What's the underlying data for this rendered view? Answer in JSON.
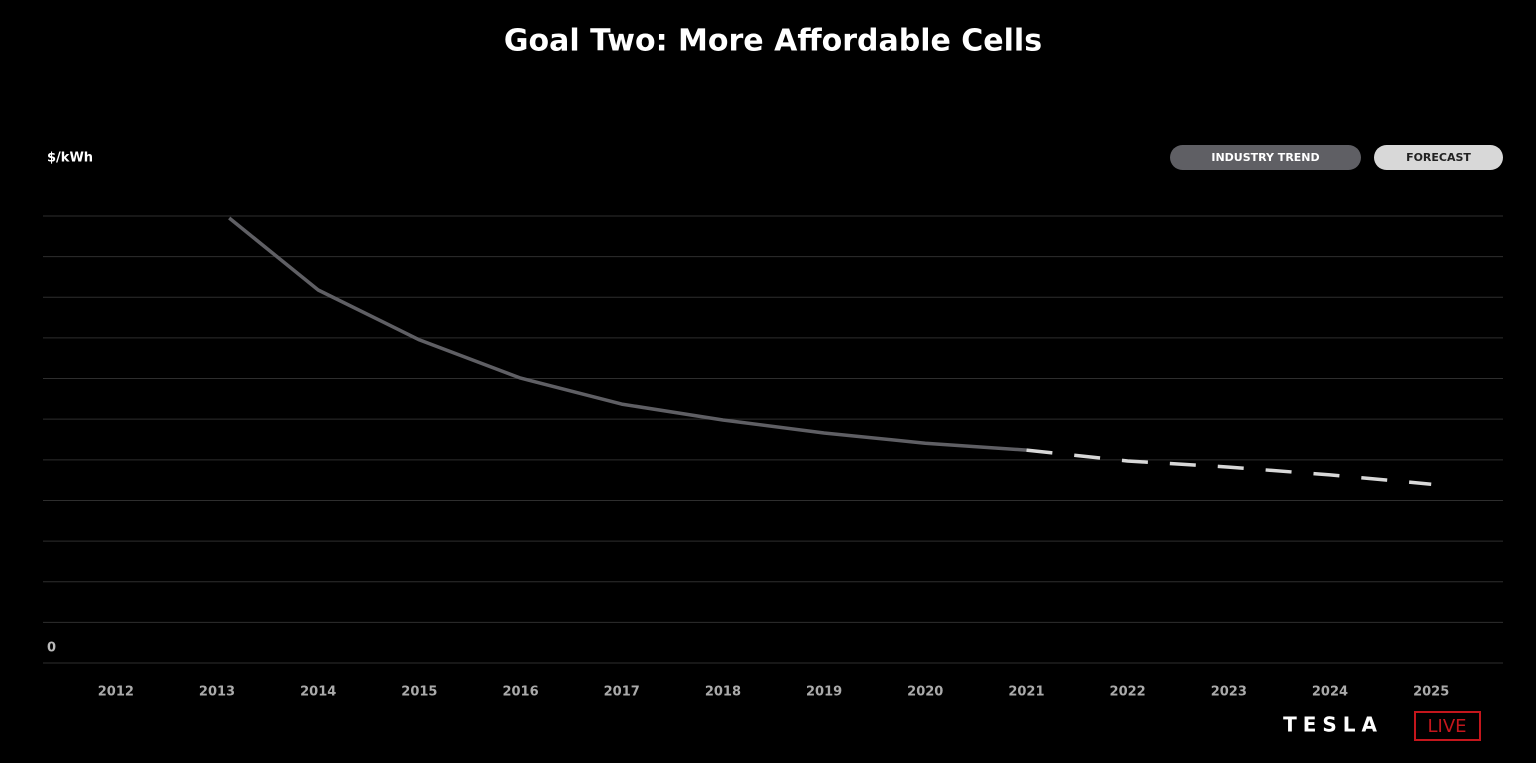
{
  "chart_data": {
    "type": "line",
    "title": "Goal Two: More Affordable Cells",
    "y_label": "$/kWh",
    "xlim": [
      2011.28,
      2025.71
    ],
    "xticks": [
      2012,
      2013,
      2014,
      2015,
      2016,
      2017,
      2018,
      2019,
      2020,
      2021,
      2022,
      2023,
      2024,
      2025
    ],
    "ylim": [
      0,
      11
    ],
    "yticks": [
      0,
      {
        "value": 1,
        "label": null
      },
      {
        "value": 2,
        "label": null
      },
      {
        "value": 3,
        "label": null
      },
      {
        "value": 4,
        "label": null
      },
      {
        "value": 5,
        "label": null
      },
      {
        "value": 6,
        "label": null
      },
      {
        "value": 7,
        "label": null
      },
      {
        "value": 8,
        "label": null
      },
      {
        "value": 9,
        "label": null
      },
      {
        "value": 10,
        "label": null
      },
      {
        "value": 11,
        "label": null
      }
    ],
    "grid": true,
    "legend": "top-right",
    "series": [
      {
        "name": "INDUSTRY TREND",
        "color": "#5f5f64",
        "dashed": false,
        "x": [
          2013.12,
          2014,
          2015,
          2016,
          2017,
          2018,
          2019,
          2020,
          2021
        ],
        "values": [
          10.95,
          9.18,
          7.95,
          7.01,
          6.37,
          5.98,
          5.66,
          5.41,
          5.24
        ]
      },
      {
        "name": "FORECAST",
        "color": "#d8d8d8",
        "dashed": true,
        "x": [
          2021,
          2022,
          2023,
          2024,
          2025
        ],
        "values": [
          5.24,
          4.97,
          4.82,
          4.63,
          4.4
        ]
      }
    ]
  },
  "footer": {
    "brand": "TESLA",
    "badge": "LIVE"
  }
}
